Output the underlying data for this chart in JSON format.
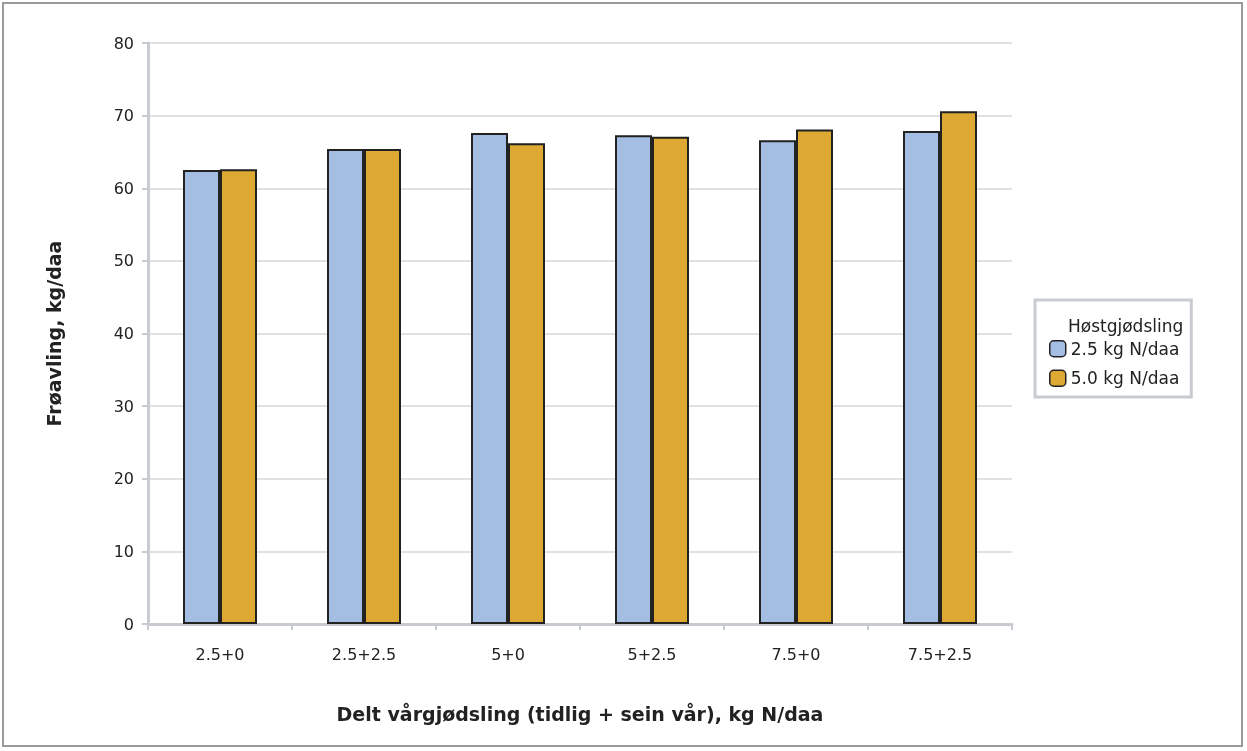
{
  "chart_data": {
    "type": "bar",
    "xlabel": "Delt vårgjødsling (tidlig + sein vår), kg N/daa",
    "ylabel": "Frøavling, kg/daa",
    "categories": [
      "2.5+0",
      "2.5+2.5",
      "5+0",
      "5+2.5",
      "7.5+0",
      "7.5+2.5"
    ],
    "series": [
      {
        "name": "2.5 kg N/daa",
        "color": "#a3bde3",
        "values": [
          62.5,
          65.4,
          67.6,
          67.3,
          66.6,
          67.9
        ]
      },
      {
        "name": "5.0 kg N/daa",
        "color": "#dea933",
        "values": [
          62.6,
          65.4,
          66.2,
          67.1,
          68.1,
          70.6
        ]
      }
    ],
    "legend_title": "Høstgjødsling",
    "legend": "right",
    "ylim": [
      0,
      80
    ],
    "yticks": [
      0,
      10,
      20,
      30,
      40,
      50,
      60,
      70,
      80
    ],
    "grid": "y"
  }
}
